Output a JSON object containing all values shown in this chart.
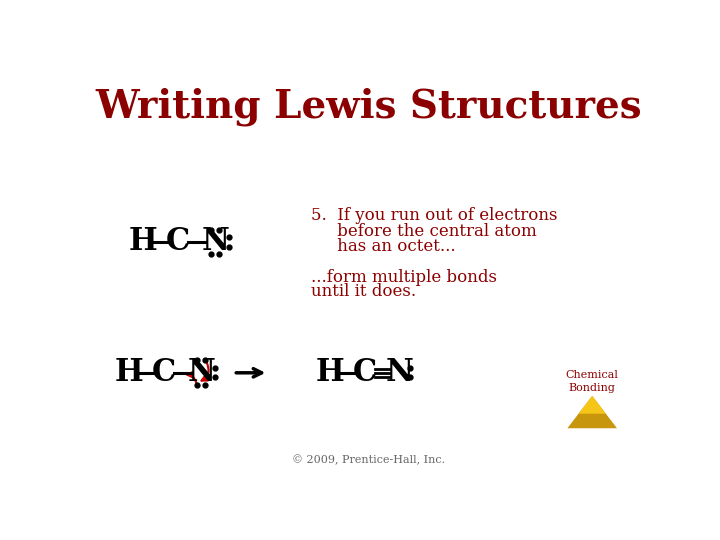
{
  "title": "Writing Lewis Structures",
  "title_color": "#8B0000",
  "title_fontsize": 28,
  "background_color": "#FFFFFF",
  "text_color": "#8B0000",
  "copyright": "© 2009, Prentice-Hall, Inc.",
  "chemical_bonding": "Chemical\nBonding",
  "arrow_color": "#CC0000",
  "dot_color": "#000000",
  "molecule_color": "#000000",
  "step5_line1": "5.  If you run out of electrons",
  "step5_line2": "     before the central atom",
  "step5_line3": "     has an octet...",
  "form_line1": "...form multiple bonds",
  "form_line2": "until it does."
}
